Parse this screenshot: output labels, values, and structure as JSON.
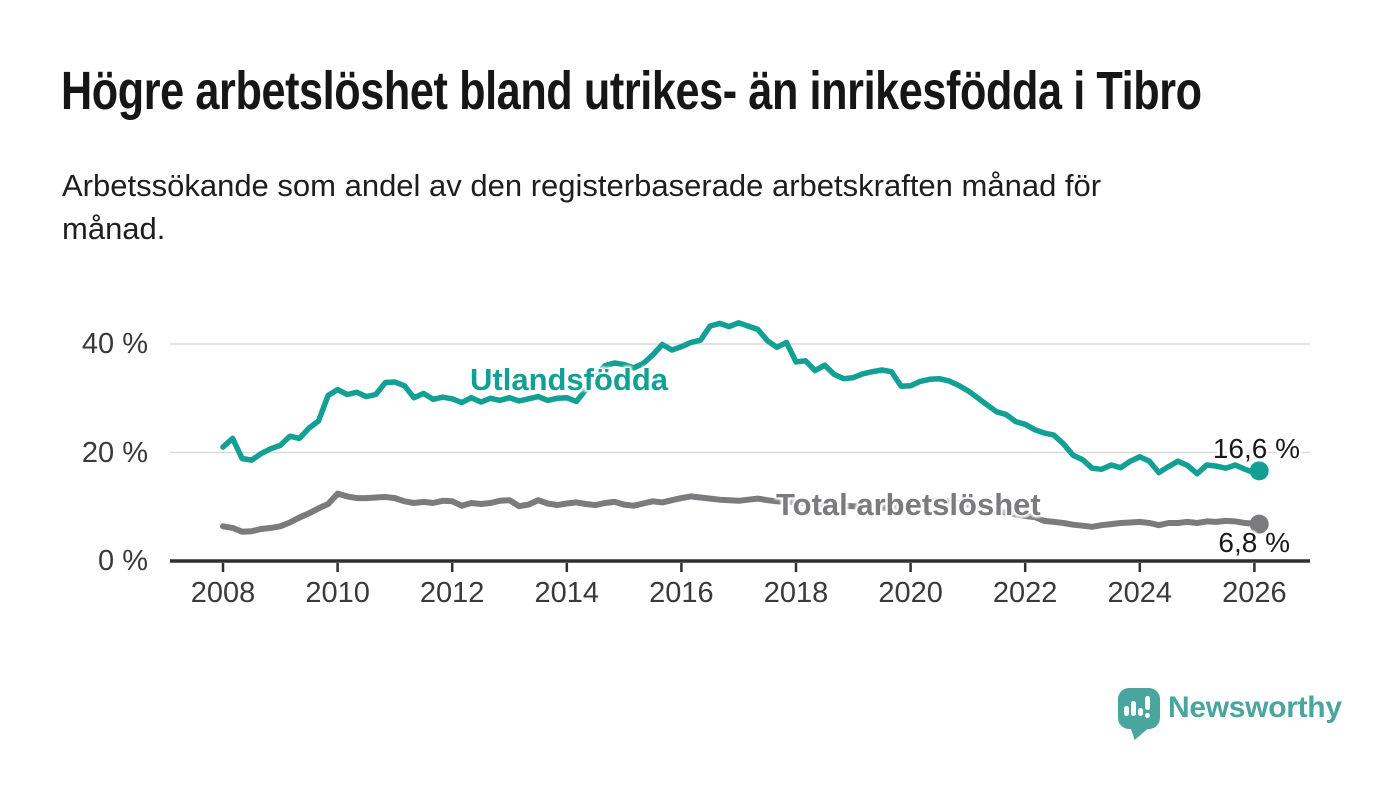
{
  "header": {
    "title": "Högre arbetslöshet bland utrikes- än inrikesfödda i Tibro",
    "subtitle_line1": "Arbetssökande som andel av den registerbaserade arbetskraften månad för",
    "subtitle_line2": "månad."
  },
  "chart_data": {
    "type": "line",
    "title": "Högre arbetslöshet bland utrikes- än inrikesfödda i Tibro",
    "subtitle": "Arbetssökande som andel av den registerbaserade arbetskraften månad för månad.",
    "unit": "%",
    "grid": true,
    "legend_position": "inline-labels",
    "x_axis": {
      "range": [
        2007.1,
        2027.0
      ],
      "ticks": [
        {
          "value": 2008,
          "label": "2008"
        },
        {
          "value": 2010,
          "label": "2010"
        },
        {
          "value": 2012,
          "label": "2012"
        },
        {
          "value": 2014,
          "label": "2014"
        },
        {
          "value": 2016,
          "label": "2016"
        },
        {
          "value": 2018,
          "label": "2018"
        },
        {
          "value": 2020,
          "label": "2020"
        },
        {
          "value": 2022,
          "label": "2022"
        },
        {
          "value": 2024,
          "label": "2024"
        },
        {
          "value": 2026,
          "label": "2026"
        }
      ]
    },
    "y_axis": {
      "range": [
        0,
        45
      ],
      "ticks": [
        {
          "value": 0,
          "label": "0 %"
        },
        {
          "value": 20,
          "label": "20 %"
        },
        {
          "value": 40,
          "label": "40 %"
        }
      ]
    },
    "x_start": 2008.0,
    "x_step_years": 0.16667,
    "x_end": 2026.083,
    "x_cadence": "every 2 months, Jan 2008 – Feb 2026",
    "series": [
      {
        "name": "Utlandsfödda",
        "color": "#13a094",
        "line_width": 5.5,
        "end_value": 16.6,
        "end_label": "16,6 %",
        "values": [
          21.0,
          22.6,
          18.9,
          18.6,
          19.8,
          20.7,
          21.3,
          23.0,
          22.6,
          24.5,
          25.8,
          30.5,
          31.6,
          30.7,
          31.1,
          30.3,
          30.7,
          32.9,
          33.0,
          32.3,
          30.1,
          30.9,
          29.8,
          30.2,
          29.9,
          29.2,
          30.1,
          29.3,
          30.0,
          29.6,
          30.1,
          29.5,
          29.9,
          30.3,
          29.6,
          30.0,
          30.1,
          29.4,
          31.6,
          33.9,
          36.0,
          36.5,
          36.2,
          35.6,
          36.4,
          38.0,
          39.9,
          38.9,
          39.5,
          40.3,
          40.7,
          43.3,
          43.8,
          43.2,
          43.9,
          43.3,
          42.7,
          40.6,
          39.4,
          40.3,
          36.7,
          36.9,
          35.1,
          36.1,
          34.4,
          33.6,
          33.8,
          34.5,
          34.9,
          35.2,
          34.9,
          32.2,
          32.3,
          33.1,
          33.5,
          33.6,
          33.2,
          32.4,
          31.4,
          30.1,
          28.8,
          27.5,
          27.0,
          25.7,
          25.2,
          24.2,
          23.6,
          23.2,
          21.6,
          19.5,
          18.7,
          17.1,
          16.9,
          17.7,
          17.2,
          18.4,
          19.2,
          18.4,
          16.3,
          17.4,
          18.4,
          17.6,
          16.1,
          17.7,
          17.5,
          17.1,
          17.7,
          16.9,
          16.3,
          16.6
        ]
      },
      {
        "name": "Total arbetslöshet",
        "color": "#7b7b7e",
        "line_width": 6,
        "end_value": 6.8,
        "end_label": "6,8 %",
        "values": [
          6.4,
          6.1,
          5.4,
          5.5,
          5.9,
          6.1,
          6.4,
          7.1,
          8.0,
          8.8,
          9.7,
          10.5,
          12.4,
          11.9,
          11.6,
          11.6,
          11.7,
          11.8,
          11.6,
          11.0,
          10.7,
          10.9,
          10.7,
          11.1,
          11.0,
          10.2,
          10.7,
          10.5,
          10.7,
          11.1,
          11.2,
          10.1,
          10.4,
          11.2,
          10.6,
          10.3,
          10.6,
          10.8,
          10.5,
          10.3,
          10.7,
          10.9,
          10.4,
          10.2,
          10.6,
          11.0,
          10.8,
          11.2,
          11.6,
          11.9,
          11.7,
          11.5,
          11.3,
          11.2,
          11.1,
          11.3,
          11.5,
          11.2,
          11.0,
          10.9,
          10.8,
          10.6,
          10.5,
          10.4,
          10.3,
          10.2,
          10.1,
          10.0,
          9.9,
          9.8,
          9.8,
          9.9,
          10.0,
          10.4,
          11.0,
          11.2,
          11.0,
          10.7,
          10.4,
          10.0,
          9.6,
          9.2,
          8.9,
          8.6,
          8.3,
          8.1,
          7.4,
          7.2,
          7.0,
          6.7,
          6.5,
          6.3,
          6.6,
          6.8,
          7.0,
          7.1,
          7.2,
          7.0,
          6.6,
          7.0,
          7.0,
          7.2,
          7.0,
          7.3,
          7.2,
          7.4,
          7.3,
          7.0,
          6.9,
          6.8
        ]
      }
    ],
    "axis_color": "#2f2f2f",
    "grid_color": "#dadada",
    "tick_label_color": "#3a3a3a"
  },
  "footer": {
    "brand": "Newsworthy",
    "brand_color": "#4ba59f"
  }
}
